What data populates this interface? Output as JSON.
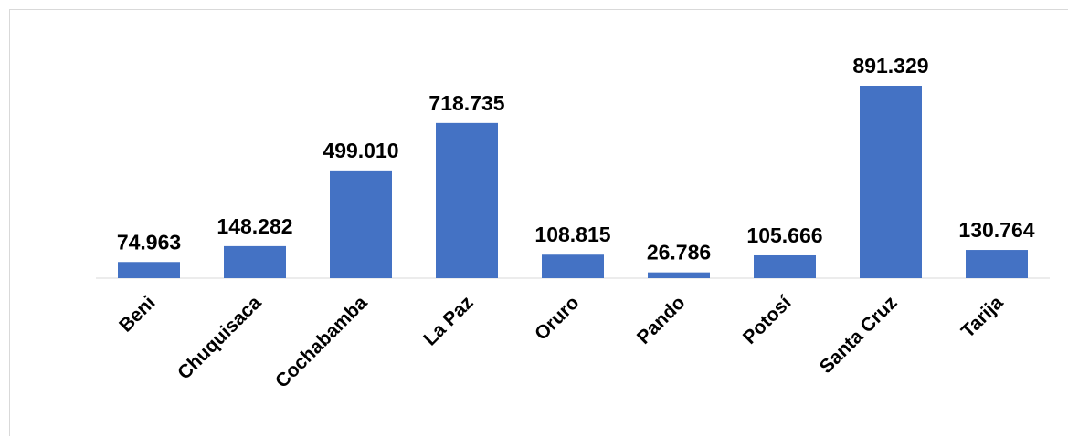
{
  "chart_data": {
    "type": "bar",
    "categories": [
      "Beni",
      "Chuquisaca",
      "Cochabamba",
      "La Paz",
      "Oruro",
      "Pando",
      "Potosí",
      "Santa Cruz",
      "Tarija"
    ],
    "values": [
      74.963,
      148.282,
      499.01,
      718.735,
      108.815,
      26.786,
      105.666,
      891.329,
      130.764
    ],
    "value_labels": [
      "74.963",
      "148.282",
      "499.010",
      "718.735",
      "108.815",
      "26.786",
      "105.666",
      "891.329",
      "130.764"
    ],
    "color": "#4472c4"
  }
}
